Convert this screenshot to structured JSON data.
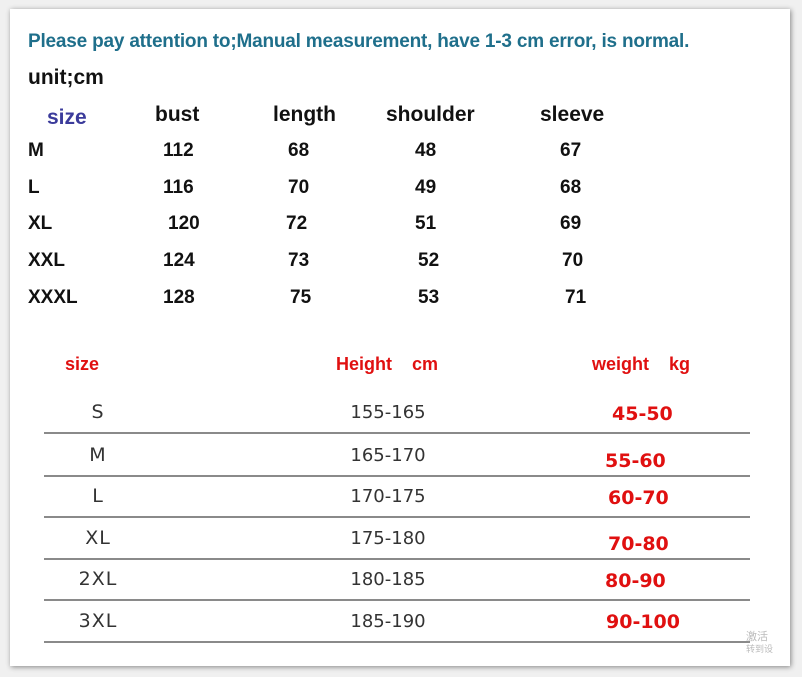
{
  "notice": "Please pay attention to;Manual measurement, have 1-3 cm error, is normal.",
  "unit": "unit;cm",
  "measure_table": {
    "headers": [
      "size",
      "bust",
      "length",
      "shoulder",
      "sleeve"
    ],
    "rows": [
      [
        "M",
        "112",
        "68",
        "48",
        "67"
      ],
      [
        "L",
        "116",
        "70",
        "49",
        "68"
      ],
      [
        "XL",
        "120",
        "72",
        "51",
        "69"
      ],
      [
        "XXL",
        "124",
        "73",
        "52",
        "70"
      ],
      [
        "XXXL",
        "128",
        "75",
        "53",
        "71"
      ]
    ]
  },
  "fit_table": {
    "headers": [
      "size",
      "Height    cm",
      "weight    kg"
    ],
    "rows": [
      [
        "S",
        "155-165",
        "45-50"
      ],
      [
        "M",
        "165-170",
        "55-60"
      ],
      [
        "L",
        "170-175",
        "60-70"
      ],
      [
        "XL",
        "175-180",
        "70-80"
      ],
      [
        "2XL",
        "180-185",
        "80-90"
      ],
      [
        "3XL",
        "185-190",
        "90-100"
      ]
    ]
  },
  "watermark": [
    "激活",
    "转到设"
  ],
  "colors": {
    "notice": "#1f6f8b",
    "size_header": "#3b3b9b",
    "fit_accent": "#e01010"
  }
}
